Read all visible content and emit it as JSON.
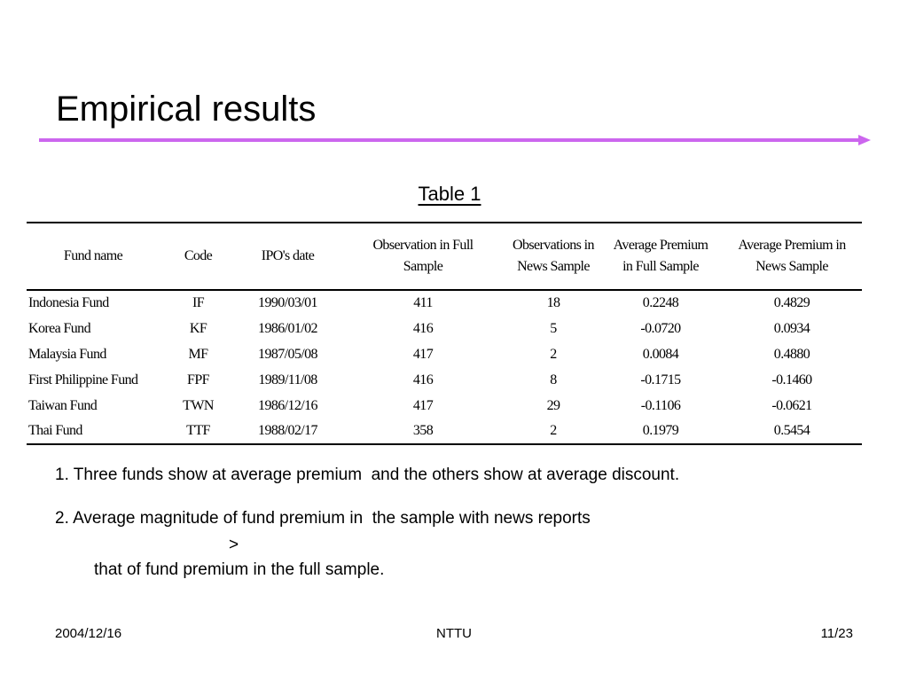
{
  "slide": {
    "title": "Empirical results",
    "accent_color": "#cc66ee"
  },
  "table": {
    "caption": "Table 1",
    "headers": [
      "Fund name",
      "Code",
      "IPO's date",
      "Observation in Full Sample",
      "Observations in News Sample",
      "Average Premium in Full Sample",
      "Average Premium in News Sample"
    ],
    "rows": [
      [
        "Indonesia Fund",
        "IF",
        "1990/03/01",
        "411",
        "18",
        "0.2248",
        "0.4829"
      ],
      [
        "Korea Fund",
        "KF",
        "1986/01/02",
        "416",
        "5",
        "-0.0720",
        "0.0934"
      ],
      [
        "Malaysia Fund",
        "MF",
        "1987/05/08",
        "417",
        "2",
        "0.0084",
        "0.4880"
      ],
      [
        "First Philippine Fund",
        "FPF",
        "1989/11/08",
        "416",
        "8",
        "-0.1715",
        "-0.1460"
      ],
      [
        "Taiwan Fund",
        "TWN",
        "1986/12/16",
        "417",
        "29",
        "-0.1106",
        "-0.0621"
      ],
      [
        "Thai Fund",
        "TTF",
        "1988/02/17",
        "358",
        "2",
        "0.1979",
        "0.5454"
      ]
    ]
  },
  "notes": {
    "n1": "1. Three funds show at average premium  and the others show at average discount.",
    "n2_line1": "2. Average magnitude of fund premium in  the sample with news reports",
    "n2_line2": ">",
    "n2_line3": "that of fund premium in the full sample."
  },
  "footer": {
    "date": "2004/12/16",
    "center": "NTTU",
    "page": "11/23"
  }
}
